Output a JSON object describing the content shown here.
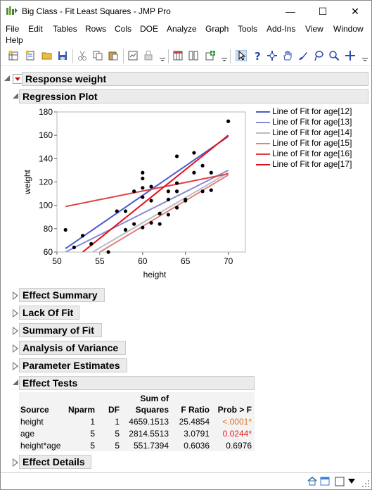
{
  "window": {
    "title": "Big Class - Fit Least Squares - JMP Pro",
    "min_glyph": "—",
    "max_glyph": "☐",
    "close_glyph": "✕"
  },
  "menu": [
    "File",
    "Edit",
    "Tables",
    "Rows",
    "Cols",
    "DOE",
    "Analyze",
    "Graph",
    "Tools",
    "Add-Ins",
    "View",
    "Window",
    "Help"
  ],
  "outline": {
    "response": "Response weight",
    "regression_plot": "Regression Plot",
    "effect_summary": "Effect Summary",
    "lack_of_fit": "Lack Of Fit",
    "summary_of_fit": "Summary of Fit",
    "analysis_of_variance": "Analysis of Variance",
    "parameter_estimates": "Parameter Estimates",
    "effect_tests": "Effect Tests",
    "effect_details": "Effect Details"
  },
  "chart_data": {
    "type": "scatter",
    "xlabel": "height",
    "ylabel": "weight",
    "xlim": [
      50,
      72
    ],
    "ylim": [
      60,
      180
    ],
    "x_ticks": [
      50,
      55,
      60,
      65,
      70
    ],
    "y_ticks": [
      60,
      80,
      100,
      120,
      140,
      160,
      180
    ],
    "points": [
      [
        51,
        79
      ],
      [
        52,
        64
      ],
      [
        53,
        74
      ],
      [
        54,
        67
      ],
      [
        56,
        60
      ],
      [
        57,
        95
      ],
      [
        58,
        79
      ],
      [
        58,
        95
      ],
      [
        59,
        84
      ],
      [
        59,
        112
      ],
      [
        60,
        115
      ],
      [
        60,
        81
      ],
      [
        60,
        107
      ],
      [
        60,
        123
      ],
      [
        60,
        128
      ],
      [
        61,
        104
      ],
      [
        61,
        116
      ],
      [
        61,
        85
      ],
      [
        62,
        93
      ],
      [
        62,
        84
      ],
      [
        63,
        112
      ],
      [
        63,
        105
      ],
      [
        63,
        92
      ],
      [
        64,
        142
      ],
      [
        64,
        98
      ],
      [
        64,
        119
      ],
      [
        64,
        112
      ],
      [
        65,
        104
      ],
      [
        65,
        105
      ],
      [
        66,
        145
      ],
      [
        66,
        128
      ],
      [
        67,
        134
      ],
      [
        67,
        112
      ],
      [
        68,
        113
      ],
      [
        68,
        128
      ],
      [
        70,
        172
      ]
    ],
    "series": [
      {
        "name": "Line of Fit for age[12]",
        "color": "#4a5ad0",
        "x": [
          51,
          70
        ],
        "y": [
          63,
          159
        ]
      },
      {
        "name": "Line of Fit for age[13]",
        "color": "#8a8ad6",
        "x": [
          51,
          70
        ],
        "y": [
          60,
          130
        ]
      },
      {
        "name": "Line of Fit for age[14]",
        "color": "#bdbdbd",
        "x": [
          53,
          70
        ],
        "y": [
          55,
          128
        ]
      },
      {
        "name": "Line of Fit for age[15]",
        "color": "#e08080",
        "x": [
          55,
          70
        ],
        "y": [
          60,
          126
        ]
      },
      {
        "name": "Line of Fit for age[16]",
        "color": "#e04040",
        "x": [
          51,
          70
        ],
        "y": [
          99,
          127
        ]
      },
      {
        "name": "Line of Fit for age[17]",
        "color": "#e0101a",
        "x": [
          53,
          70
        ],
        "y": [
          60,
          160
        ]
      }
    ]
  },
  "effect_tests": {
    "headers": {
      "source": "Source",
      "nparm": "Nparm",
      "df": "DF",
      "ss_top": "Sum of",
      "ss_bottom": "Squares",
      "f_ratio": "F Ratio",
      "prob": "Prob > F"
    },
    "rows": [
      {
        "source": "height",
        "nparm": "1",
        "df": "1",
        "ss": "4659.1513",
        "f": "25.4854",
        "p": "<.0001*",
        "p_color": "#e07020"
      },
      {
        "source": "age",
        "nparm": "5",
        "df": "5",
        "ss": "2814.5513",
        "f": "3.0791",
        "p": "0.0244*",
        "p_color": "#e02020"
      },
      {
        "source": "height*age",
        "nparm": "5",
        "df": "5",
        "ss": "551.7394",
        "f": "0.6036",
        "p": "0.6976",
        "p_color": "#000000"
      }
    ]
  }
}
